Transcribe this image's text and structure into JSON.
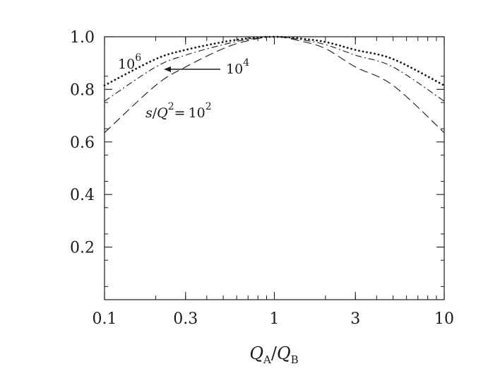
{
  "chart_data": {
    "type": "line",
    "title": "",
    "xscale": "log",
    "xlim": [
      0.1,
      10
    ],
    "ylim": [
      0,
      1.0
    ],
    "x_ticks": [
      0.1,
      0.3,
      1,
      3,
      10
    ],
    "x_tick_labels": [
      "0.1",
      "0.3",
      "1",
      "3",
      "10"
    ],
    "y_ticks": [
      0.2,
      0.4,
      0.6,
      0.8,
      1.0
    ],
    "y_tick_labels": [
      "0.2",
      "0.4",
      "0.6",
      "0.8",
      "1.0"
    ],
    "xlabel": {
      "main": "Q",
      "sub1": "A",
      "slash": "/",
      "main2": "Q",
      "sub2": "B"
    },
    "ylabel": "",
    "grid": false,
    "x": [
      0.1,
      0.2,
      0.3,
      0.5,
      0.7,
      1,
      1.4,
      2,
      3,
      5,
      10
    ],
    "series": [
      {
        "style": "dashed",
        "values": [
          0.635,
          0.815,
          0.885,
          0.955,
          0.985,
          1.0,
          0.985,
          0.955,
          0.885,
          0.815,
          0.635
        ]
      },
      {
        "style": "dashdot",
        "values": [
          0.755,
          0.885,
          0.93,
          0.97,
          0.99,
          1.0,
          0.99,
          0.97,
          0.93,
          0.885,
          0.755
        ]
      },
      {
        "style": "dotted",
        "values": [
          0.815,
          0.915,
          0.95,
          0.98,
          0.994,
          1.0,
          0.994,
          0.98,
          0.95,
          0.915,
          0.815
        ]
      }
    ],
    "annotations": {
      "label_1e6": {
        "base": "10",
        "exp": "6"
      },
      "label_1e4": {
        "base": "10",
        "exp": "4"
      },
      "label_1e2": {
        "prefix_s": "s",
        "prefix_slash": "/",
        "prefix_q": "Q",
        "prefix_q_exp": "2",
        "eq": "=",
        "base": "10",
        "exp": "2"
      }
    }
  }
}
